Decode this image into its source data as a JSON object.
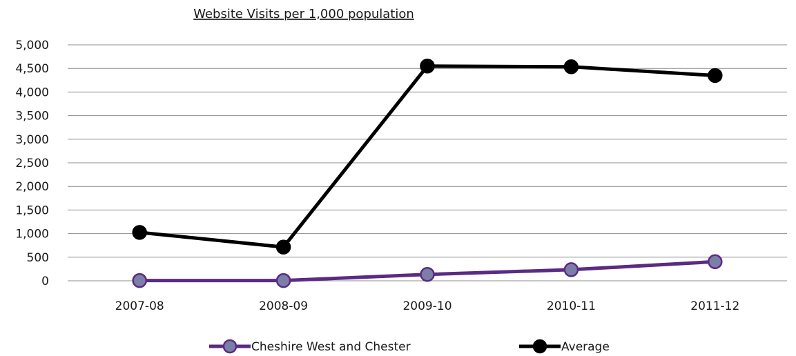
{
  "chart_data": {
    "type": "line",
    "title": "Website Visits per 1,000 population",
    "xlabel": "",
    "ylabel": "",
    "categories": [
      "2007-08",
      "2008-09",
      "2009-10",
      "2010-11",
      "2011-12"
    ],
    "ylim": [
      0,
      5000
    ],
    "yticks": [
      0,
      500,
      1000,
      1500,
      2000,
      2500,
      3000,
      3500,
      4000,
      4500,
      5000
    ],
    "ytick_labels": [
      "0",
      "500",
      "1,000",
      "1,500",
      "2,000",
      "2,500",
      "3,000",
      "3,500",
      "4,000",
      "4,500",
      "5,000"
    ],
    "grid": true,
    "legend_position": "bottom",
    "series": [
      {
        "name": "Cheshire West and Chester",
        "values": [
          5,
          5,
          135,
          235,
          405
        ],
        "line_color": "#5b2a83",
        "marker_fill": "#7b7fa8",
        "marker_stroke": "#5b2a83"
      },
      {
        "name": "Average",
        "values": [
          1025,
          715,
          4550,
          4535,
          4350
        ],
        "line_color": "#000000",
        "marker_fill": "#000000",
        "marker_stroke": "#000000"
      }
    ]
  }
}
